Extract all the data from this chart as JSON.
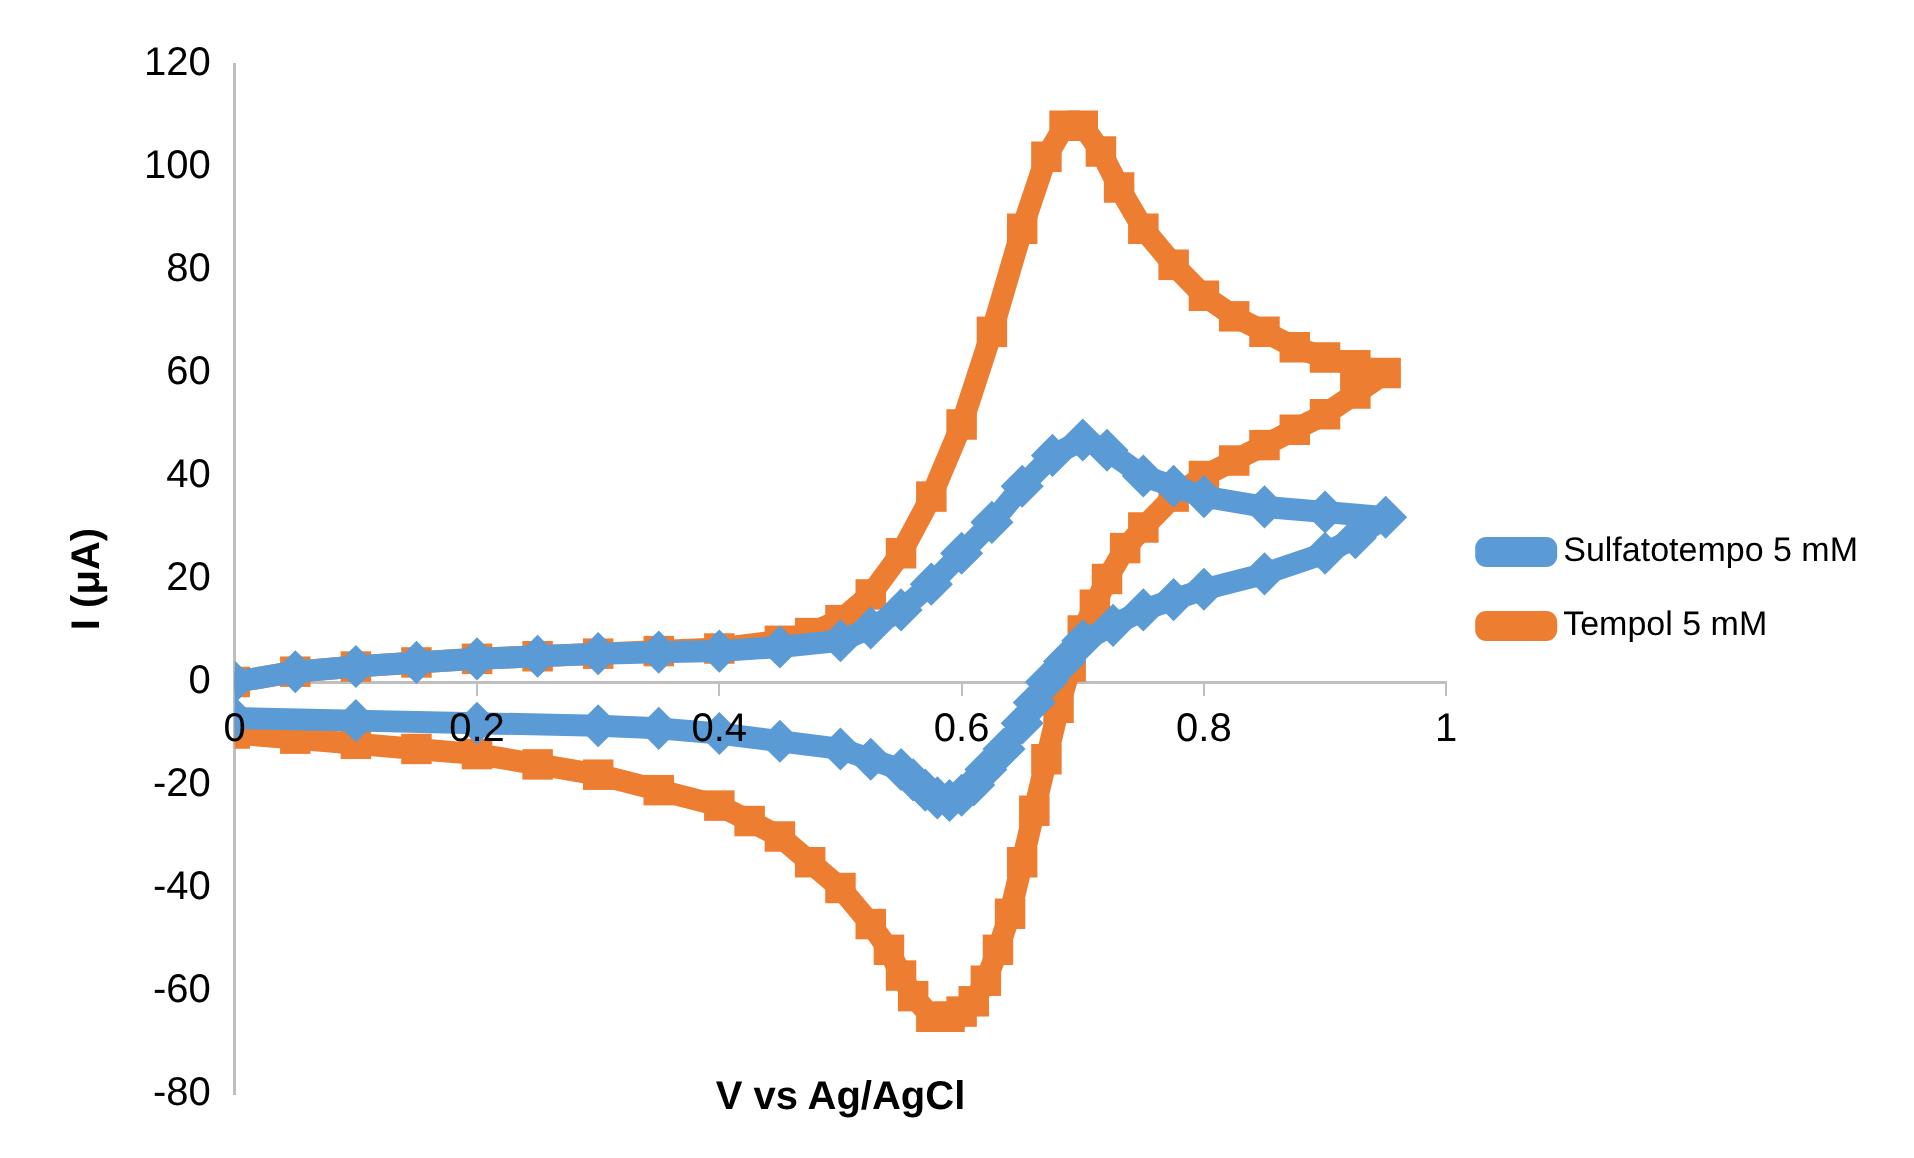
{
  "chart_data": {
    "type": "line",
    "xlabel": "V vs Ag/AgCl",
    "ylabel": "I (μA)",
    "xlim": [
      0,
      1
    ],
    "xticks": [
      0,
      0.2,
      0.4,
      0.6,
      0.8,
      1
    ],
    "ylim": [
      -80,
      120
    ],
    "yticks": [
      -80,
      -60,
      -40,
      -20,
      0,
      20,
      40,
      60,
      80,
      100,
      120
    ],
    "grid": false,
    "legend": "right",
    "line_style": "solid",
    "series": [
      {
        "name": "Sulfatotempo 5 mM",
        "color": "#5b9bd5",
        "marker": "diamond",
        "x": [
          0,
          0.05,
          0.1,
          0.15,
          0.2,
          0.25,
          0.3,
          0.35,
          0.4,
          0.45,
          0.5,
          0.525,
          0.55,
          0.575,
          0.6,
          0.625,
          0.65,
          0.675,
          0.7,
          0.72,
          0.75,
          0.775,
          0.8,
          0.85,
          0.9,
          0.95,
          0.925,
          0.9,
          0.85,
          0.8,
          0.775,
          0.75,
          0.725,
          0.7,
          0.685,
          0.67,
          0.66,
          0.65,
          0.635,
          0.62,
          0.61,
          0.6,
          0.59,
          0.58,
          0.57,
          0.56,
          0.55,
          0.525,
          0.5,
          0.45,
          0.4,
          0.35,
          0.3,
          0.2,
          0.1,
          0
        ],
        "values": [
          0,
          2,
          3,
          3.8,
          4.5,
          5,
          5.5,
          5.8,
          6,
          6.8,
          8,
          10.5,
          14,
          19,
          25,
          31,
          38,
          44,
          47,
          45,
          40,
          38,
          36,
          34,
          33,
          32,
          28,
          25,
          21,
          18,
          16,
          14,
          11,
          8,
          4,
          0,
          -4,
          -8,
          -13,
          -17,
          -20,
          -22,
          -23,
          -22.5,
          -21,
          -19,
          -17,
          -15,
          -13,
          -11.5,
          -10,
          -9,
          -8.5,
          -8,
          -7.5,
          -7
        ]
      },
      {
        "name": "Tempol 5 mM",
        "color": "#ed7d31",
        "marker": "square",
        "x": [
          0,
          0.05,
          0.1,
          0.15,
          0.2,
          0.25,
          0.3,
          0.35,
          0.4,
          0.45,
          0.475,
          0.5,
          0.525,
          0.55,
          0.575,
          0.6,
          0.625,
          0.65,
          0.67,
          0.685,
          0.7,
          0.715,
          0.73,
          0.75,
          0.775,
          0.8,
          0.825,
          0.85,
          0.875,
          0.9,
          0.925,
          0.95,
          0.925,
          0.9,
          0.875,
          0.85,
          0.825,
          0.8,
          0.775,
          0.75,
          0.735,
          0.72,
          0.71,
          0.7,
          0.69,
          0.68,
          0.67,
          0.66,
          0.65,
          0.64,
          0.63,
          0.62,
          0.61,
          0.6,
          0.59,
          0.575,
          0.56,
          0.55,
          0.54,
          0.525,
          0.5,
          0.475,
          0.45,
          0.425,
          0.4,
          0.35,
          0.3,
          0.25,
          0.2,
          0.15,
          0.1,
          0.05,
          0
        ],
        "values": [
          0,
          2,
          3,
          3.8,
          4.5,
          5,
          5.5,
          6,
          6.5,
          8,
          9.5,
          12,
          17,
          25,
          36,
          50,
          68,
          88,
          102,
          108,
          108,
          103,
          96,
          88,
          81,
          75,
          71,
          68,
          65,
          63,
          61.5,
          60,
          56,
          52,
          49,
          46,
          43,
          40,
          36,
          30,
          26,
          20,
          15,
          10,
          3,
          -5,
          -15,
          -25,
          -35,
          -45,
          -52,
          -58,
          -62,
          -64,
          -65,
          -65,
          -61,
          -57,
          -52,
          -47,
          -40,
          -35,
          -30,
          -27,
          -24,
          -21,
          -18,
          -16,
          -14,
          -13,
          -12,
          -11,
          -10
        ]
      }
    ]
  }
}
